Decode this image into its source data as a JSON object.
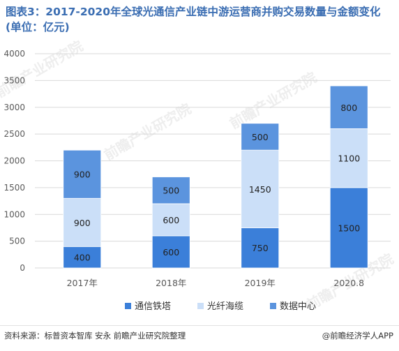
{
  "title": "图表3：2017-2020年全球光通信产业链中游运营商并购交易数量与金额变化(单位：亿元)",
  "watermark": "前瞻产业研究院",
  "footer": {
    "source": "资料来源：标普资本智库 安永 前瞻产业研究院整理",
    "brand": "@前瞻经济学人APP"
  },
  "colors": {
    "title": "#3a6db2",
    "series": [
      "#3b7fd9",
      "#cbdff8",
      "#5b94de"
    ],
    "grid": "#d9d9d9",
    "tick": "#595959"
  },
  "chart_data": {
    "type": "bar",
    "stacked": true,
    "categories": [
      "2017年",
      "2018年",
      "2019年",
      "2020.8"
    ],
    "series": [
      {
        "name": "通信铁塔",
        "values": [
          400,
          600,
          750,
          1500
        ]
      },
      {
        "name": "光纤海缆",
        "values": [
          900,
          600,
          1450,
          1100
        ]
      },
      {
        "name": "数据中心",
        "values": [
          900,
          500,
          500,
          800
        ]
      }
    ],
    "ylim": [
      0,
      4000
    ],
    "yticks": [
      0,
      500,
      1000,
      1500,
      2000,
      2500,
      3000,
      3500,
      4000
    ],
    "grid": true,
    "legend": "bottom"
  }
}
